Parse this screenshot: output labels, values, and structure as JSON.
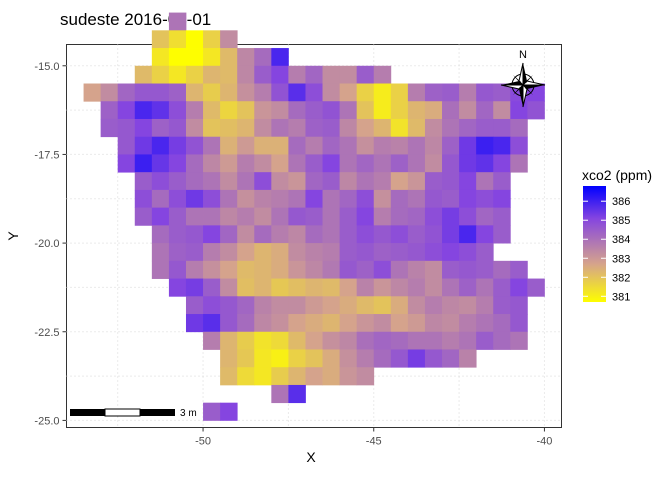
{
  "chart_data": {
    "type": "heatmap",
    "title": "sudeste 2016-04-01",
    "xlabel": "X",
    "ylabel": "Y",
    "xlim": [
      -54,
      -39.5
    ],
    "ylim": [
      -25.2,
      -14.4
    ],
    "x_ticks": [
      -50,
      -45,
      -40
    ],
    "y_ticks": [
      -15.0,
      -17.5,
      -20.0,
      -22.5,
      -25.0
    ],
    "x_tick_labels": [
      "-50",
      "-45",
      "-40"
    ],
    "y_tick_labels": [
      "-15.0",
      "-17.5",
      "-20.0",
      "-22.5",
      "-25.0"
    ],
    "cell_size_deg": 0.5,
    "grid_x0": -53.25,
    "grid_y0": -24.75,
    "legend": {
      "title": "xco2 (ppm)",
      "min": 380.7,
      "max": 386.8,
      "breaks": [
        381,
        382,
        383,
        384,
        385,
        386
      ],
      "break_labels": [
        "381",
        "382",
        "383",
        "384",
        "385",
        "386"
      ],
      "colors": [
        "#fefe00",
        "#d5a38c",
        "#8545e0",
        "#0000ff"
      ]
    },
    "north_arrow_label": "N",
    "scale_bar_label": "3 m",
    "rows": [
      {
        "row": 0,
        "col0": 5,
        "values": [
          384
        ]
      },
      {
        "row": 1,
        "col0": 4,
        "values": [
          382.3,
          381.7,
          380.8,
          382,
          383.5
        ]
      },
      {
        "row": 2,
        "col0": 4,
        "values": [
          381.5,
          381,
          380.7,
          381.5,
          382.5,
          383.6,
          384.2,
          385.8
        ]
      },
      {
        "row": 3,
        "col0": 3,
        "values": [
          382.5,
          382,
          381.5,
          382,
          382.6,
          382.5,
          383.6,
          384.5,
          385,
          383.8,
          384.3,
          383.5,
          383.5,
          384.5,
          383.8
        ]
      },
      {
        "row": 4,
        "col0": 0,
        "values": [
          383,
          383.5,
          384.3,
          384.6,
          384.6,
          384.4,
          382.6,
          382.1,
          382.6,
          383.4,
          383.8,
          384.7,
          385.6,
          384.8,
          383.5,
          383,
          382,
          381.4,
          382,
          383.8,
          384.4,
          384.5,
          383.8,
          384.6,
          384.5,
          384.9,
          385
        ]
      },
      {
        "row": 5,
        "col0": 1,
        "values": [
          384.4,
          385,
          385.8,
          385.5,
          384.8,
          383.8,
          382.5,
          381.9,
          382.3,
          383.3,
          383.5,
          384.2,
          384.5,
          384.7,
          384,
          382.3,
          381.4,
          382,
          382.6,
          382.8,
          384.1,
          383.5,
          384.3,
          383.5,
          385,
          384.7
        ]
      },
      {
        "row": 6,
        "col0": 1,
        "values": [
          384.5,
          384.6,
          385,
          384.4,
          384.6,
          383.5,
          382.3,
          382.4,
          382.6,
          383.5,
          384,
          383.8,
          384.4,
          384.5,
          383.6,
          383,
          382.6,
          381.6,
          382.5,
          383.5,
          384,
          384.3,
          384.5,
          384.5,
          384.2
        ]
      },
      {
        "row": 7,
        "col0": 2,
        "values": [
          384.6,
          385.3,
          385.8,
          385.2,
          384.7,
          384,
          382.7,
          383.2,
          382.7,
          382.7,
          384.2,
          383.8,
          384.3,
          384,
          383.4,
          383.8,
          383.7,
          384,
          383.6,
          384.4,
          385.3,
          386,
          385.8,
          384.8
        ]
      },
      {
        "row": 8,
        "col0": 2,
        "values": [
          385,
          386,
          385.4,
          385,
          384.2,
          383.6,
          383.2,
          383.8,
          383.5,
          383,
          384,
          384.5,
          385,
          384,
          384.3,
          384,
          384.4,
          384,
          383.5,
          384.6,
          385.3,
          385.5,
          385,
          384
        ]
      },
      {
        "row": 9,
        "col0": 3,
        "values": [
          384.5,
          384.8,
          384.5,
          384.2,
          384,
          383.5,
          384,
          384.8,
          383.5,
          383.3,
          384.3,
          384.5,
          383.6,
          384,
          383.8,
          383,
          383.3,
          384.5,
          384.6,
          385,
          384,
          384.5
        ]
      },
      {
        "row": 10,
        "col0": 3,
        "values": [
          384.8,
          384.2,
          384.8,
          385.3,
          384.8,
          384,
          383.4,
          383.7,
          383.8,
          384,
          385,
          384,
          384.3,
          384.8,
          383.4,
          384.2,
          384,
          384.6,
          384.5,
          385,
          384.8,
          385
        ]
      },
      {
        "row": 11,
        "col0": 3,
        "values": [
          384.5,
          385,
          384.5,
          384,
          384,
          383.6,
          383.8,
          383.5,
          384,
          384.6,
          384.5,
          384,
          384.5,
          385,
          383.8,
          384.2,
          384.3,
          384.8,
          385.2,
          384.8,
          384.3,
          384.5
        ]
      },
      {
        "row": 12,
        "col0": 4,
        "values": [
          384.2,
          384.5,
          384.6,
          385,
          384.3,
          383.5,
          384.2,
          383.8,
          383.6,
          384.2,
          384,
          384.5,
          384.8,
          384.6,
          384.8,
          384.5,
          384.7,
          385.2,
          385.8,
          385,
          384.5
        ]
      },
      {
        "row": 13,
        "col0": 4,
        "values": [
          384,
          384.4,
          384.5,
          383.8,
          383.5,
          383,
          382.6,
          382.8,
          383.5,
          383.7,
          383.8,
          384.5,
          384.6,
          384.4,
          384.5,
          384.6,
          384.8,
          385,
          384.8,
          384.5
        ]
      },
      {
        "row": 14,
        "col0": 4,
        "values": [
          384,
          384.6,
          383.8,
          383.4,
          383,
          382.5,
          382.6,
          382.8,
          383.3,
          383.6,
          383.9,
          384.6,
          384.4,
          384.8,
          384,
          383.7,
          383.5,
          384.5,
          384.6,
          384.5,
          384.2,
          384.5
        ]
      },
      {
        "row": 15,
        "col0": 5,
        "values": [
          385,
          385.2,
          384.5,
          383.5,
          382.4,
          382.6,
          382.2,
          382.4,
          382.6,
          382.5,
          383,
          383.7,
          383.3,
          383.6,
          383.8,
          383.5,
          384,
          384.4,
          384,
          384.5,
          385,
          384.5
        ]
      },
      {
        "row": 16,
        "col0": 6,
        "values": [
          384.5,
          384.8,
          384.6,
          384.3,
          383.7,
          383.5,
          383.5,
          383.2,
          383,
          382.8,
          382.5,
          382.3,
          382.8,
          383.5,
          383.8,
          383.6,
          383.5,
          383.8,
          384.5,
          384.6
        ]
      },
      {
        "row": 17,
        "col0": 6,
        "values": [
          385.3,
          385.6,
          384.6,
          384.2,
          383.6,
          383.4,
          383,
          382.8,
          382.6,
          383,
          383.3,
          383.5,
          383,
          383.2,
          383.6,
          383.5,
          383.8,
          384,
          384.2,
          384.6
        ]
      },
      {
        "row": 18,
        "col0": 7,
        "values": [
          383.8,
          382.6,
          382.1,
          381.6,
          381.8,
          382.5,
          383,
          383.4,
          383.6,
          384.1,
          384.3,
          384.2,
          384,
          384,
          383.8,
          384,
          384.5,
          384.2,
          384
        ]
      },
      {
        "row": 19,
        "col0": 8,
        "values": [
          382.6,
          382.2,
          381.5,
          381.3,
          382,
          382.3,
          382.8,
          383.4,
          383.8,
          384.2,
          384.6,
          385.2,
          384.6,
          384.3,
          383.7
        ]
      },
      {
        "row": 20,
        "col0": 8,
        "values": [
          382.5,
          381.8,
          381.5,
          382.1,
          382.6,
          383,
          382.8,
          383.3,
          383.5
        ]
      },
      {
        "row": 21,
        "col0": 11,
        "values": [
          384,
          385.6
        ]
      },
      {
        "row": 22,
        "col0": 7,
        "values": [
          384.5,
          385
        ]
      }
    ]
  }
}
